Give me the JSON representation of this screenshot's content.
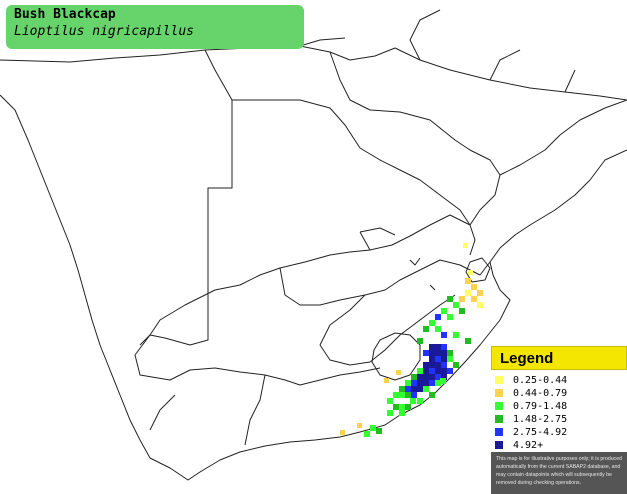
{
  "title": {
    "common_name": "Bush Blackcap",
    "scientific_name": "Lioptilus nigricapillus"
  },
  "legend": {
    "title": "Legend",
    "items": [
      {
        "label": "0.25-0.44",
        "color": "#ffff66"
      },
      {
        "label": "0.44-0.79",
        "color": "#ffd24d"
      },
      {
        "label": "0.79-1.48",
        "color": "#33ff33"
      },
      {
        "label": "1.48-2.75",
        "color": "#22bb22"
      },
      {
        "label": "2.75-4.92",
        "color": "#2233ff"
      },
      {
        "label": "4.92+",
        "color": "#1a1a99"
      }
    ],
    "note": "This map is for illustrative purposes only; it is produced automatically from the current SABAP2 database, and may contain datapoints which will subsequently be removed during checking operations."
  },
  "colors": {
    "title_box": "#66d46a",
    "legend_header": "#f5e600",
    "border": "#222222"
  }
}
